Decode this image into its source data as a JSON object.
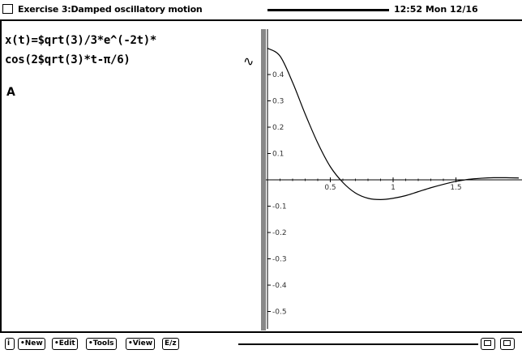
{
  "window": {
    "title": "Exercise 3:Damped oscillatory motion",
    "clock": "12:52 Mon 12/16"
  },
  "editor": {
    "line1": "x(t)=$qrt(3)/3*e^(-2t)*",
    "line2": "cos(2$qrt(3)*t-π/6)",
    "cursor": "A"
  },
  "graph": {
    "curve_icon": "∿"
  },
  "toolbar": {
    "info": "i",
    "new": "•New",
    "edit": "•Edit",
    "tools": "•Tools",
    "view": "•View",
    "expr": "E/z"
  },
  "chart_data": {
    "type": "line",
    "title": "",
    "xlabel": "",
    "ylabel": "",
    "xlim": [
      0,
      2
    ],
    "ylim": [
      -0.5,
      0.5
    ],
    "x_ticks": [
      "0.5",
      "1",
      "1.5"
    ],
    "y_ticks": [
      "0.4",
      "0.3",
      "0.2",
      "0.1",
      "-0.1",
      "-0.2",
      "-0.3",
      "-0.4",
      "-0.5"
    ],
    "series": [
      {
        "x": [
          0,
          0.1,
          0.2,
          0.3,
          0.4,
          0.5,
          0.6,
          0.7,
          0.8,
          0.9,
          1.0,
          1.1,
          1.2,
          1.3,
          1.4,
          1.5,
          1.6,
          1.7,
          1.8,
          1.9,
          2.0
        ],
        "values": [
          0.5,
          0.47,
          0.37,
          0.25,
          0.14,
          0.05,
          -0.01,
          -0.05,
          -0.07,
          -0.075,
          -0.07,
          -0.06,
          -0.045,
          -0.03,
          -0.017,
          -0.006,
          0.002,
          0.006,
          0.008,
          0.008,
          0.007
        ]
      }
    ]
  }
}
